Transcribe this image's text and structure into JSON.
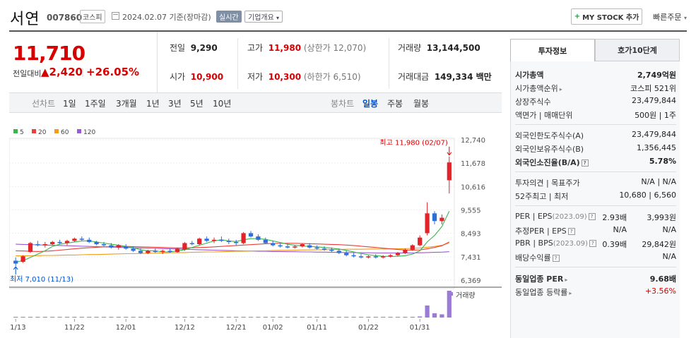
{
  "header": {
    "stock_name": "서연",
    "stock_code": "007860",
    "market": "코스피",
    "date": "2024.02.07",
    "date_suffix": "기준(장마감)",
    "realtime_label": "실시간",
    "company_label": "기업개요",
    "mystock_label": "MY STOCK 추가",
    "quick_order_label": "빠른주문"
  },
  "price": {
    "current": "11,710",
    "change_label": "전일대비",
    "change_amount": "▲2,420",
    "change_pct": "+26.05%"
  },
  "quote": {
    "prev_label": "전일",
    "prev_value": "9,290",
    "high_label": "고가",
    "high_value": "11,980",
    "upper_limit": "(상한가 12,070)",
    "volume_label": "거래량",
    "volume_value": "13,144,500",
    "open_label": "시가",
    "open_value": "10,900",
    "low_label": "저가",
    "low_value": "10,300",
    "lower_limit": "(하한가 6,510)",
    "amount_label": "거래대금",
    "amount_value": "149,334 백만"
  },
  "period_bar": {
    "line_chart_label": "선차트",
    "periods": [
      "1일",
      "1주일",
      "3개월",
      "1년",
      "3년",
      "5년",
      "10년"
    ],
    "candle_label": "봉차트",
    "candle_periods": [
      "일봉",
      "주봉",
      "월봉"
    ],
    "active_candle": "일봉"
  },
  "chart_data": {
    "type": "candlestick",
    "legend": [
      {
        "name": "5",
        "color": "#3ab54a"
      },
      {
        "name": "20",
        "color": "#e8413c"
      },
      {
        "name": "60",
        "color": "#f39c1a"
      },
      {
        "name": "120",
        "color": "#9b59d6"
      }
    ],
    "y_ticks": [
      "12,740",
      "11,678",
      "10,616",
      "9,555",
      "8,493",
      "7,431",
      "6,369"
    ],
    "ylim": [
      6369,
      12740
    ],
    "x_ticks": [
      "11/13",
      "11/22",
      "12/01",
      "12/12",
      "12/21",
      "01/02",
      "01/11",
      "01/22",
      "01/31"
    ],
    "high_annotation": "최고 11,980 (02/07)",
    "low_annotation": "최저 7,010 (11/13)",
    "volume_label": "거래량",
    "up_color": "#e0242a",
    "down_color": "#2d6fd6",
    "candles": [
      [
        7250,
        7400,
        7010,
        7120
      ],
      [
        7200,
        7500,
        7150,
        7450
      ],
      [
        7650,
        8100,
        7600,
        8050
      ],
      [
        8000,
        8150,
        7900,
        7950
      ],
      [
        7950,
        8100,
        7850,
        8000
      ],
      [
        8000,
        8150,
        7950,
        8100
      ],
      [
        8100,
        8200,
        8000,
        8050
      ],
      [
        8050,
        8200,
        7950,
        8150
      ],
      [
        8150,
        8300,
        8100,
        8250
      ],
      [
        8250,
        8350,
        8150,
        8200
      ],
      [
        8200,
        8300,
        8050,
        8100
      ],
      [
        8100,
        8150,
        7950,
        8000
      ],
      [
        8000,
        8100,
        7900,
        7950
      ],
      [
        7950,
        8050,
        7800,
        7850
      ],
      [
        7850,
        8000,
        7750,
        7950
      ],
      [
        7900,
        8000,
        7750,
        7800
      ],
      [
        7800,
        7900,
        7650,
        7700
      ],
      [
        7700,
        7800,
        7550,
        7600
      ],
      [
        7600,
        7750,
        7550,
        7700
      ],
      [
        7700,
        7800,
        7600,
        7650
      ],
      [
        7650,
        7750,
        7550,
        7700
      ],
      [
        7700,
        7800,
        7600,
        7650
      ],
      [
        7650,
        7850,
        7600,
        7800
      ],
      [
        7750,
        8100,
        7700,
        8050
      ],
      [
        8050,
        8150,
        7950,
        8000
      ],
      [
        8000,
        8300,
        7950,
        8250
      ],
      [
        8250,
        8350,
        8100,
        8150
      ],
      [
        8150,
        8300,
        8050,
        8200
      ],
      [
        8200,
        8350,
        8100,
        8150
      ],
      [
        8150,
        8250,
        8000,
        8100
      ],
      [
        8100,
        8200,
        7950,
        8050
      ],
      [
        8050,
        8550,
        8000,
        8500
      ],
      [
        8500,
        8600,
        8300,
        8350
      ],
      [
        8350,
        8450,
        8150,
        8200
      ],
      [
        8200,
        8300,
        8000,
        8050
      ],
      [
        8050,
        8150,
        7900,
        7950
      ],
      [
        7950,
        8050,
        7850,
        7900
      ],
      [
        7900,
        8000,
        7800,
        7850
      ],
      [
        7850,
        7950,
        7800,
        7900
      ],
      [
        7900,
        8050,
        7850,
        8000
      ],
      [
        7950,
        8050,
        7800,
        7850
      ],
      [
        7850,
        7950,
        7750,
        7800
      ],
      [
        7800,
        7900,
        7700,
        7750
      ],
      [
        7750,
        7850,
        7650,
        7700
      ],
      [
        7700,
        7800,
        7550,
        7600
      ],
      [
        7600,
        7700,
        7450,
        7500
      ],
      [
        7500,
        7600,
        7400,
        7450
      ],
      [
        7450,
        7550,
        7350,
        7400
      ],
      [
        7400,
        7500,
        7350,
        7450
      ],
      [
        7450,
        7550,
        7350,
        7400
      ],
      [
        7400,
        7500,
        7350,
        7450
      ],
      [
        7450,
        7550,
        7400,
        7500
      ],
      [
        7500,
        7650,
        7450,
        7600
      ],
      [
        7600,
        7800,
        7550,
        7750
      ],
      [
        7750,
        8000,
        7700,
        7950
      ],
      [
        7950,
        8400,
        7900,
        8300
      ],
      [
        8500,
        9900,
        8400,
        9400
      ],
      [
        9400,
        9500,
        8900,
        9050
      ],
      [
        9050,
        9350,
        8900,
        9200
      ],
      [
        10900,
        11980,
        10300,
        11710
      ]
    ],
    "ma5": [
      7200,
      7250,
      7400,
      7550,
      7700,
      7900,
      8000,
      8050,
      8100,
      8150,
      8150,
      8100,
      8050,
      8000,
      7950,
      7900,
      7850,
      7750,
      7700,
      7700,
      7650,
      7650,
      7700,
      7750,
      7850,
      7950,
      8050,
      8150,
      8200,
      8150,
      8120,
      8200,
      8250,
      8250,
      8220,
      8150,
      8080,
      8000,
      7950,
      7920,
      7900,
      7880,
      7850,
      7820,
      7780,
      7720,
      7650,
      7580,
      7520,
      7480,
      7450,
      7440,
      7450,
      7480,
      7550,
      7700,
      8100,
      8400,
      8800,
      9500
    ],
    "ma20": [
      7700,
      7690,
      7680,
      7670,
      7680,
      7700,
      7730,
      7760,
      7790,
      7820,
      7840,
      7860,
      7880,
      7890,
      7900,
      7900,
      7890,
      7880,
      7870,
      7860,
      7850,
      7840,
      7830,
      7830,
      7840,
      7850,
      7860,
      7880,
      7900,
      7920,
      7940,
      7960,
      7980,
      8000,
      8020,
      8030,
      8040,
      8040,
      8040,
      8030,
      8020,
      8010,
      8000,
      7990,
      7980,
      7960,
      7940,
      7910,
      7880,
      7850,
      7820,
      7790,
      7760,
      7740,
      7730,
      7740,
      7790,
      7850,
      7930,
      8100
    ],
    "ma60": [
      7470,
      7470,
      7480,
      7480,
      7490,
      7490,
      7500,
      7510,
      7510,
      7520,
      7530,
      7530,
      7540,
      7550,
      7560,
      7570,
      7570,
      7580,
      7590,
      7600,
      7600,
      7610,
      7620,
      7620,
      7630,
      7640,
      7650,
      7650,
      7660,
      7670,
      7680,
      7680,
      7690,
      7700,
      7700,
      7710,
      7720,
      7720,
      7730,
      7740,
      7740,
      7750,
      7750,
      7760,
      7760,
      7770,
      7770,
      7770,
      7780,
      7780,
      7780,
      7790,
      7790,
      7800,
      7810,
      7830,
      7860,
      7900,
      7950,
      8050
    ],
    "ma120": [
      8000,
      7990,
      7980,
      7970,
      7960,
      7950,
      7940,
      7930,
      7920,
      7910,
      7900,
      7890,
      7880,
      7870,
      7860,
      7850,
      7840,
      7830,
      7820,
      7810,
      7800,
      7790,
      7780,
      7770,
      7760,
      7750,
      7740,
      7730,
      7720,
      7710,
      7700,
      7690,
      7690,
      7680,
      7680,
      7670,
      7670,
      7660,
      7660,
      7650,
      7650,
      7640,
      7640,
      7630,
      7630,
      7620,
      7620,
      7610,
      7610,
      7600,
      7600,
      7600,
      7600,
      7600,
      7600,
      7610,
      7620,
      7630,
      7640,
      7660
    ],
    "volume": [
      0.02,
      0.01,
      0.02,
      0.01,
      0.01,
      0.01,
      0.01,
      0.01,
      0.01,
      0.01,
      0.01,
      0.01,
      0.01,
      0.01,
      0.01,
      0.01,
      0.01,
      0.01,
      0.01,
      0.01,
      0.01,
      0.01,
      0.01,
      0.02,
      0.01,
      0.02,
      0.01,
      0.01,
      0.01,
      0.01,
      0.01,
      0.02,
      0.01,
      0.01,
      0.01,
      0.01,
      0.01,
      0.01,
      0.01,
      0.01,
      0.01,
      0.01,
      0.01,
      0.01,
      0.01,
      0.01,
      0.01,
      0.01,
      0.01,
      0.01,
      0.01,
      0.01,
      0.01,
      0.01,
      0.02,
      0.04,
      0.45,
      0.16,
      0.12,
      1.0
    ]
  },
  "right_panel": {
    "tab_info": "투자정보",
    "tab_orderbook": "호가10단계",
    "rows1": [
      {
        "label": "시가총액",
        "value": "2,749억원",
        "bold": true
      },
      {
        "label": "시가총액순위",
        "value": "코스피 521위",
        "arrow": true
      },
      {
        "label": "상장주식수",
        "value": "23,479,844"
      },
      {
        "label": "액면가 | 매매단위",
        "value": "500원 | 1주"
      }
    ],
    "rows2": [
      {
        "label": "외국인한도주식수(A)",
        "value": "23,479,844"
      },
      {
        "label": "외국인보유주식수(B)",
        "value": "1,356,445"
      },
      {
        "label": "외국인소진율(B/A)",
        "value": "5.78%",
        "bold": true,
        "q": true
      }
    ],
    "rows3": [
      {
        "label": "투자의견 | 목표주가",
        "value": "N/A | N/A"
      },
      {
        "label": "52주최고 | 최저",
        "value": "10,680 | 6,560"
      }
    ],
    "rows4": [
      {
        "label": "PER | EPS",
        "label_suffix": "(2023.09)",
        "value_a": "2.93배",
        "value_b": "3,993원",
        "q": true
      },
      {
        "label": "추정PER | EPS",
        "value_a": "N/A",
        "value_b": "N/A",
        "q": true
      },
      {
        "label": "PBR | BPS",
        "label_suffix": "(2023.09)",
        "value_a": "0.39배",
        "value_b": "29,842원",
        "q": true
      },
      {
        "label": "배당수익률",
        "value_a": "",
        "value_b": "N/A",
        "q": true
      }
    ],
    "rows5": [
      {
        "label": "동일업종 PER",
        "value": "9.68배",
        "bold": true,
        "arrow": true
      },
      {
        "label": "동일업종 등락률",
        "value": "+3.56%",
        "red": true,
        "arrow": true
      }
    ]
  }
}
